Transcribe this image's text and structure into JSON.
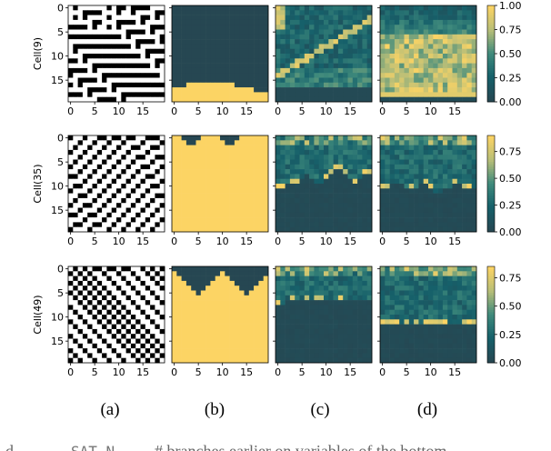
{
  "colors": {
    "dark": "#264752",
    "yellow": "#fcd464",
    "black": "#000000",
    "white": "#ffffff"
  },
  "colormap": [
    "#264752",
    "#16606a",
    "#3f8a7c",
    "#b8be78",
    "#fcd464"
  ],
  "panel_captions": [
    "(a)",
    "(b)",
    "(c)",
    "(d)"
  ],
  "footer_fragment": {
    "left": "d",
    "mono": "SAT N",
    "right": "# branches earlier on variables of the bottom"
  },
  "chart_data": [
    {
      "type": "heatmap",
      "row_label": "Cell(9)",
      "x_ticks": [
        "0",
        "5",
        "10",
        "15"
      ],
      "y_ticks": [
        "0",
        "5",
        "10",
        "15"
      ],
      "colorbar": {
        "range": [
          0.0,
          1.0
        ],
        "ticks": [
          "0.00",
          "0.25",
          "0.50",
          "0.75",
          "1.00"
        ]
      },
      "panels": {
        "a": {
          "kind": "binary_grid",
          "size": 20,
          "rule": 9
        },
        "b": {
          "kind": "boundary",
          "boundary_rows": [
            17,
            17,
            17,
            16,
            16,
            16,
            16,
            16,
            16,
            16,
            16,
            16,
            16,
            17,
            17,
            17,
            17,
            18,
            18,
            18
          ]
        },
        "c": {
          "kind": "activation",
          "bright_top_rows": [
            0,
            4
          ],
          "mid_level": 0.3,
          "bottom_dark_from_row": 17
        },
        "d": {
          "kind": "activation",
          "band_rows": [
            6,
            17
          ],
          "band_level": 0.85,
          "top_level": 0.25
        }
      }
    },
    {
      "type": "heatmap",
      "row_label": "Cell(35)",
      "x_ticks": [
        "0",
        "5",
        "10",
        "15"
      ],
      "y_ticks": [
        "0",
        "5",
        "10",
        "15"
      ],
      "colorbar": {
        "range": [
          0.0,
          0.9
        ],
        "ticks": [
          "0.00",
          "0.25",
          "0.50",
          "0.75"
        ]
      },
      "panels": {
        "a": {
          "kind": "binary_grid",
          "size": 20,
          "rule": 35
        },
        "b": {
          "kind": "boundary",
          "boundary_rows": [
            0,
            0,
            1,
            2,
            2,
            1,
            0,
            0,
            0,
            0,
            1,
            2,
            2,
            1,
            0,
            0,
            0,
            0,
            0,
            0
          ]
        },
        "c": {
          "kind": "activation",
          "mid_level": 0.3,
          "dark_boundary": [
            11,
            11,
            10,
            10,
            10,
            9,
            8,
            9,
            10,
            10,
            9,
            8,
            7,
            7,
            8,
            9,
            10,
            9,
            8,
            8
          ]
        },
        "d": {
          "kind": "activation",
          "mid_level": 0.3,
          "dark_boundary": [
            11,
            11,
            10,
            10,
            10,
            11,
            11,
            11,
            10,
            10,
            11,
            12,
            12,
            11,
            11,
            10,
            10,
            11,
            11,
            11
          ]
        }
      }
    },
    {
      "type": "heatmap",
      "row_label": "Cell(49)",
      "x_ticks": [
        "0",
        "5",
        "10",
        "15"
      ],
      "y_ticks": [
        "0",
        "5",
        "10",
        "15"
      ],
      "colorbar": {
        "range": [
          0.0,
          0.85
        ],
        "ticks": [
          "0.00",
          "0.25",
          "0.50",
          "0.75"
        ]
      },
      "panels": {
        "a": {
          "kind": "binary_grid",
          "size": 20,
          "rule": 49
        },
        "b": {
          "kind": "boundary",
          "boundary_rows": [
            1,
            2,
            3,
            4,
            5,
            6,
            5,
            4,
            3,
            2,
            1,
            2,
            3,
            4,
            5,
            6,
            5,
            4,
            3,
            2
          ]
        },
        "c": {
          "kind": "activation",
          "mid_level": 0.3,
          "dark_boundary": [
            8,
            8,
            7,
            7,
            7,
            7,
            7,
            7,
            7,
            7,
            7,
            7,
            7,
            7,
            7,
            7,
            7,
            7,
            7,
            7
          ]
        },
        "d": {
          "kind": "activation",
          "mid_level": 0.3,
          "dark_boundary": [
            12,
            12,
            12,
            12,
            12,
            12,
            12,
            12,
            12,
            12,
            12,
            12,
            12,
            12,
            12,
            12,
            12,
            12,
            12,
            12
          ]
        }
      }
    }
  ]
}
